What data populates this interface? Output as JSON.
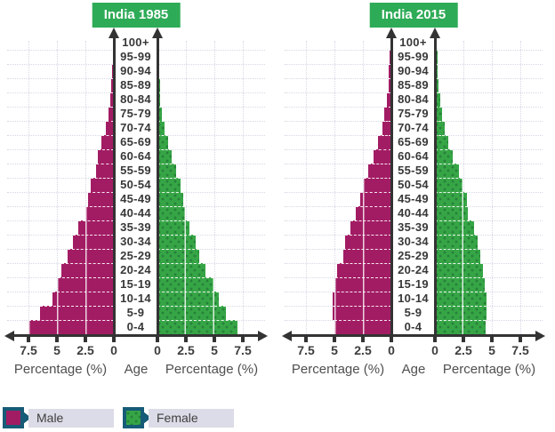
{
  "axis": {
    "left_label": "Percentage (%)",
    "center_label": "Age",
    "right_label": "Percentage (%)",
    "male_ticks": [
      "7.5",
      "5",
      "2.5",
      "0"
    ],
    "female_ticks": [
      "0",
      "2.5",
      "5",
      "7.5"
    ]
  },
  "legend": [
    {
      "label": "Male",
      "swatch": "male-swatch-icon"
    },
    {
      "label": "Female",
      "swatch": "female-swatch-icon"
    }
  ],
  "colors": {
    "male_bar": "#A21C64",
    "female_bar": "#36A546",
    "female_dot": "#27813A",
    "title_bg": "#2EAB57",
    "title_text": "#FFFFFF",
    "legend_border": "#165B77",
    "legend_label_bg": "#DCDCE8",
    "axis": "#333333",
    "gridline": "#D7D7E6",
    "label_text": "#3D3D3D"
  },
  "age_groups_top_to_bottom": [
    "100+",
    "95-99",
    "90-94",
    "85-89",
    "80-84",
    "75-79",
    "70-74",
    "65-69",
    "60-64",
    "55-59",
    "50-54",
    "45-49",
    "40-44",
    "35-39",
    "30-34",
    "25-29",
    "20-24",
    "15-19",
    "10-14",
    "5-9",
    "0-4"
  ],
  "chart_data": [
    {
      "type": "bar",
      "subtype": "population-pyramid",
      "title": "India 1985",
      "xlabel": "Percentage (%)",
      "ylabel": "Age",
      "x_ticks": [
        0,
        2.5,
        5,
        7.5
      ],
      "xlim_each_side": [
        0,
        9
      ],
      "grid": true,
      "categories_top_to_bottom": [
        "100+",
        "95-99",
        "90-94",
        "85-89",
        "80-84",
        "75-79",
        "70-74",
        "65-69",
        "60-64",
        "55-59",
        "50-54",
        "45-49",
        "40-44",
        "35-39",
        "30-34",
        "25-29",
        "20-24",
        "15-19",
        "10-14",
        "5-9",
        "0-4"
      ],
      "series": [
        {
          "name": "Male",
          "side": "left",
          "values": [
            0.05,
            0.1,
            0.15,
            0.2,
            0.3,
            0.5,
            0.7,
            1.1,
            1.4,
            1.6,
            2.0,
            2.3,
            2.5,
            3.1,
            3.6,
            4.1,
            4.6,
            4.9,
            5.4,
            6.5,
            7.5
          ]
        },
        {
          "name": "Female",
          "side": "right",
          "values": [
            0.05,
            0.1,
            0.15,
            0.2,
            0.25,
            0.4,
            0.6,
            0.9,
            1.25,
            1.65,
            2.05,
            2.25,
            2.4,
            2.8,
            3.35,
            3.7,
            4.2,
            4.9,
            5.4,
            6.0,
            7.0
          ]
        }
      ]
    },
    {
      "type": "bar",
      "subtype": "population-pyramid",
      "title": "India 2015",
      "xlabel": "Percentage (%)",
      "ylabel": "Age",
      "x_ticks": [
        0,
        2.5,
        5,
        7.5
      ],
      "xlim_each_side": [
        0,
        9
      ],
      "grid": true,
      "categories_top_to_bottom": [
        "100+",
        "95-99",
        "90-94",
        "85-89",
        "80-84",
        "75-79",
        "70-74",
        "65-69",
        "60-64",
        "55-59",
        "50-54",
        "45-49",
        "40-44",
        "35-39",
        "30-34",
        "25-29",
        "20-24",
        "15-19",
        "10-14",
        "5-9",
        "0-4"
      ],
      "series": [
        {
          "name": "Male",
          "side": "left",
          "values": [
            0.1,
            0.15,
            0.2,
            0.25,
            0.4,
            0.6,
            0.8,
            1.15,
            1.6,
            2.0,
            2.4,
            2.75,
            3.1,
            3.6,
            4.1,
            4.2,
            4.75,
            4.95,
            5.15,
            5.15,
            5.0
          ]
        },
        {
          "name": "Female",
          "side": "right",
          "values": [
            0.15,
            0.2,
            0.22,
            0.3,
            0.45,
            0.65,
            0.85,
            1.2,
            1.6,
            2.1,
            2.45,
            2.8,
            2.9,
            3.4,
            3.75,
            4.0,
            4.2,
            4.4,
            4.55,
            4.55,
            4.45
          ]
        }
      ]
    }
  ]
}
